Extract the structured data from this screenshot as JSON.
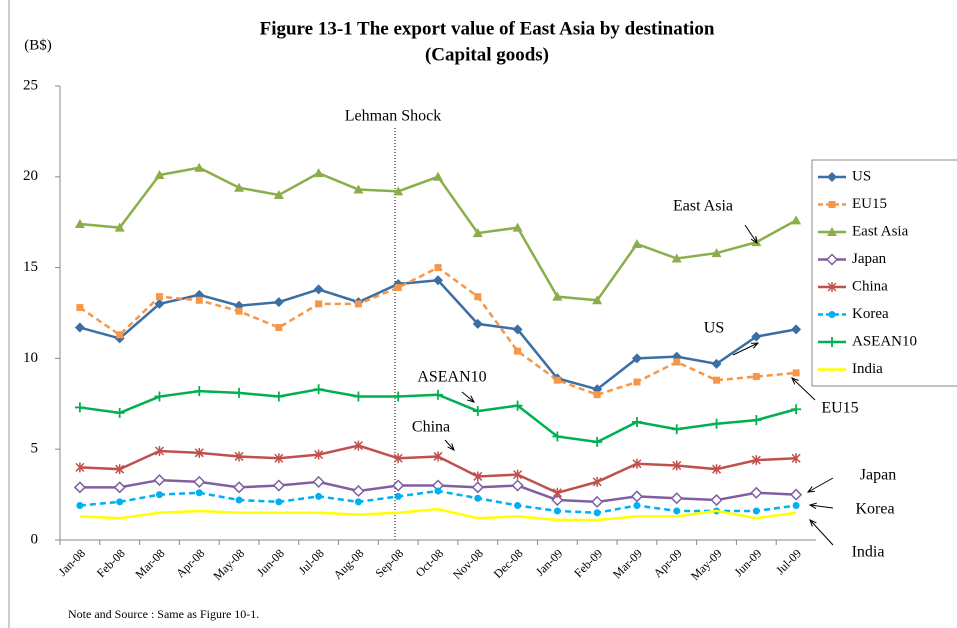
{
  "chart_data": {
    "type": "line",
    "title": "Figure 13-1 The export value of East Asia by destination",
    "subtitle": "(Capital goods)",
    "y_label": "(B$)",
    "note": "Note and Source : Same as Figure 10-1.",
    "annotations": [
      "Lehman Shock",
      "East Asia",
      "US",
      "EU15",
      "ASEAN10",
      "China",
      "Japan",
      "Korea",
      "India"
    ],
    "categories": [
      "Jan-08",
      "Feb-08",
      "Mar-08",
      "Apr-08",
      "May-08",
      "Jun-08",
      "Jul-08",
      "Aug-08",
      "Sep-08",
      "Oct-08",
      "Nov-08",
      "Dec-08",
      "Jan-09",
      "Feb-09",
      "Mar-09",
      "Apr-09",
      "May-09",
      "Jun-09",
      "Jul-09"
    ],
    "ylim": [
      0,
      25
    ],
    "yticks": [
      0,
      5,
      10,
      15,
      20,
      25
    ],
    "grid": false,
    "legend": "right",
    "series": [
      {
        "name": "US",
        "color": "#3a6ea5",
        "marker": "diamond",
        "dash": false,
        "values": [
          11.7,
          11.1,
          13.0,
          13.5,
          12.9,
          13.1,
          13.8,
          13.1,
          14.1,
          14.3,
          11.9,
          11.6,
          8.9,
          8.3,
          10.0,
          10.1,
          9.7,
          11.2,
          11.6
        ]
      },
      {
        "name": "EU15",
        "color": "#f79646",
        "marker": "square",
        "dash": true,
        "values": [
          12.8,
          11.3,
          13.4,
          13.2,
          12.6,
          11.7,
          13.0,
          13.0,
          13.9,
          15.0,
          13.4,
          10.4,
          8.8,
          8.0,
          8.7,
          9.8,
          8.8,
          9.0,
          9.2
        ]
      },
      {
        "name": "East Asia",
        "color": "#8aae4a",
        "marker": "triangle",
        "dash": false,
        "values": [
          17.4,
          17.2,
          20.1,
          20.5,
          19.4,
          19.0,
          20.2,
          19.3,
          19.2,
          20.0,
          16.9,
          17.2,
          13.4,
          13.2,
          16.3,
          15.5,
          15.8,
          16.4,
          17.6
        ]
      },
      {
        "name": "Japan",
        "color": "#7f5fa0",
        "marker": "open-diamond",
        "dash": false,
        "values": [
          2.9,
          2.9,
          3.3,
          3.2,
          2.9,
          3.0,
          3.2,
          2.7,
          3.0,
          3.0,
          2.9,
          3.0,
          2.2,
          2.1,
          2.4,
          2.3,
          2.2,
          2.6,
          2.5
        ]
      },
      {
        "name": "China",
        "color": "#c0504d",
        "marker": "star",
        "dash": false,
        "values": [
          4.0,
          3.9,
          4.9,
          4.8,
          4.6,
          4.5,
          4.7,
          5.2,
          4.5,
          4.6,
          3.5,
          3.6,
          2.6,
          3.2,
          4.2,
          4.1,
          3.9,
          4.4,
          4.5
        ]
      },
      {
        "name": "Korea",
        "color": "#00b0f0",
        "marker": "circle",
        "dash": true,
        "values": [
          1.9,
          2.1,
          2.5,
          2.6,
          2.2,
          2.1,
          2.4,
          2.1,
          2.4,
          2.7,
          2.3,
          1.9,
          1.6,
          1.5,
          1.9,
          1.6,
          1.6,
          1.6,
          1.9
        ]
      },
      {
        "name": "ASEAN10",
        "color": "#00b050",
        "marker": "plus",
        "dash": false,
        "values": [
          7.3,
          7.0,
          7.9,
          8.2,
          8.1,
          7.9,
          8.3,
          7.9,
          7.9,
          8.0,
          7.1,
          7.4,
          5.7,
          5.4,
          6.5,
          6.1,
          6.4,
          6.6,
          7.2
        ]
      },
      {
        "name": "India",
        "color": "#ffff00",
        "marker": "none",
        "dash": false,
        "values": [
          1.3,
          1.2,
          1.5,
          1.6,
          1.5,
          1.5,
          1.5,
          1.4,
          1.5,
          1.7,
          1.2,
          1.3,
          1.1,
          1.1,
          1.3,
          1.3,
          1.6,
          1.2,
          1.5
        ]
      }
    ]
  }
}
